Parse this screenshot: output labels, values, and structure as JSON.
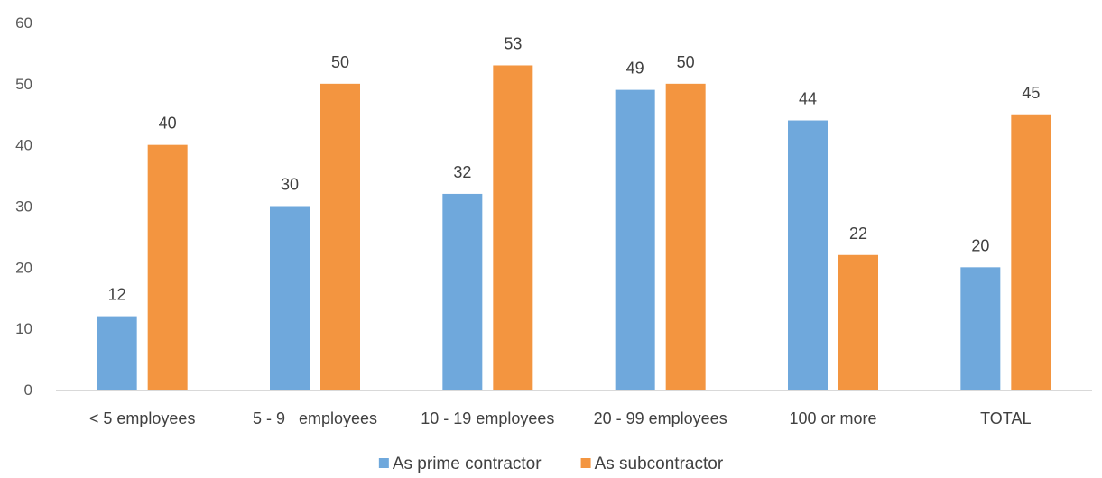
{
  "chart_data": {
    "type": "bar",
    "title": "",
    "xlabel": "",
    "ylabel": "",
    "categories": [
      "< 5 employees",
      "5 - 9   employees",
      "10 - 19 employees",
      "20 - 99 employees",
      "100 or more",
      "TOTAL"
    ],
    "series": [
      {
        "name": "As prime contractor",
        "color": "#6FA8DC",
        "values": [
          12,
          30,
          32,
          49,
          44,
          20
        ]
      },
      {
        "name": "As subcontractor",
        "color": "#F39540",
        "values": [
          40,
          50,
          53,
          50,
          22,
          45
        ]
      }
    ],
    "ylim": [
      0,
      60
    ],
    "yticks": [
      0,
      10,
      20,
      30,
      40,
      50,
      60
    ],
    "grid": false,
    "legend": "bottom-center",
    "data_labels": true
  }
}
